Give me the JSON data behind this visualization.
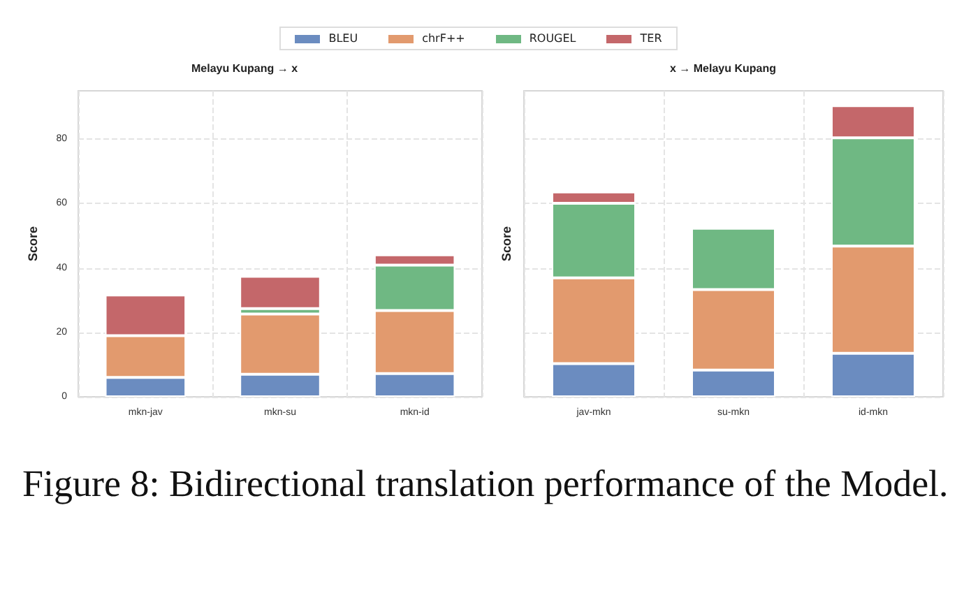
{
  "chart_data": [
    {
      "type": "bar",
      "title": "Melayu Kupang → x",
      "ylabel": "Score",
      "categories": [
        "mkn-jav",
        "mkn-su",
        "mkn-id"
      ],
      "stacked": true,
      "ylim": [
        0,
        95
      ],
      "yticks": [
        0,
        20,
        40,
        60,
        80
      ],
      "grid": true,
      "legend": "top",
      "annotations": [
        "Figure 8: Bidirectional translation performance of the Model."
      ],
      "series": [
        {
          "name": "BLEU",
          "color": "#6b8cc0",
          "values": [
            6,
            7,
            7.2
          ]
        },
        {
          "name": "chrF++",
          "color": "#e29a6e",
          "values": [
            13,
            18.7,
            19.6
          ]
        },
        {
          "name": "ROUGEL",
          "color": "#6fb883",
          "values": [
            0,
            1.7,
            14.1
          ]
        },
        {
          "name": "TER",
          "color": "#c4676a",
          "values": [
            12.6,
            10,
            3.2
          ]
        }
      ]
    },
    {
      "type": "bar",
      "title": "x → Melayu Kupang",
      "ylabel": "Score",
      "categories": [
        "jav-mkn",
        "su-mkn",
        "id-mkn"
      ],
      "stacked": true,
      "ylim": [
        0,
        95
      ],
      "yticks": [
        0,
        20,
        40,
        60,
        80
      ],
      "grid": true,
      "tick_labels": "x",
      "legend": "top",
      "series": [
        {
          "name": "BLEU",
          "color": "#6b8cc0",
          "values": [
            10.3,
            8.3,
            13.5
          ]
        },
        {
          "name": "chrF++",
          "color": "#e29a6e",
          "values": [
            26.6,
            25,
            33.3
          ]
        },
        {
          "name": "ROUGEL",
          "color": "#6fb883",
          "values": [
            23.2,
            19,
            33.6
          ]
        },
        {
          "name": "TER",
          "color": "#c4676a",
          "values": [
            3.5,
            0,
            10
          ]
        }
      ]
    }
  ]
}
